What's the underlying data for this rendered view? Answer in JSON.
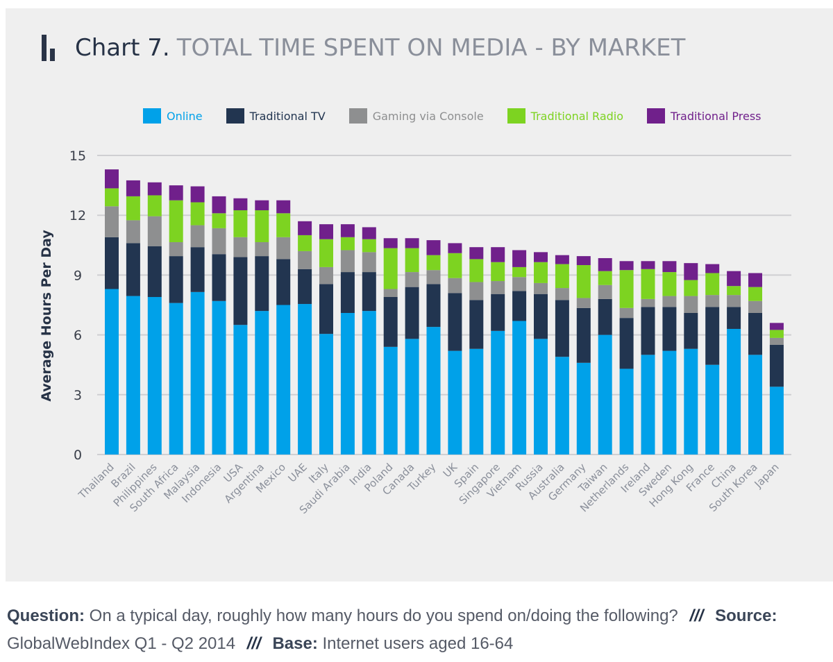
{
  "header": {
    "title_prefix": "Chart 7.",
    "title": "TOTAL TIME SPENT ON MEDIA - BY MARKET"
  },
  "colors": {
    "online": "#00a1e9",
    "tv": "#223550",
    "console": "#8e8f90",
    "radio": "#7dd321",
    "press": "#70208b"
  },
  "chart_data": {
    "type": "bar",
    "stacked": true,
    "title": "TOTAL TIME SPENT ON MEDIA - BY MARKET",
    "xlabel": "",
    "ylabel": "Average Hours Per Day",
    "ylim": [
      0,
      15
    ],
    "yticks": [
      0,
      3,
      6,
      9,
      12,
      15
    ],
    "grid": true,
    "legend_position": "top",
    "categories": [
      "Thailand",
      "Brazil",
      "Philippines",
      "South Africa",
      "Malaysia",
      "Indonesia",
      "USA",
      "Argentina",
      "Mexico",
      "UAE",
      "Italy",
      "Saudi Arabia",
      "India",
      "Poland",
      "Canada",
      "Turkey",
      "UK",
      "Spain",
      "Singapore",
      "Vietnam",
      "Russia",
      "Australia",
      "Germany",
      "Taiwan",
      "Netherlands",
      "Ireland",
      "Sweden",
      "Hong Kong",
      "France",
      "China",
      "South Korea",
      "Japan"
    ],
    "series": [
      {
        "name": "Online",
        "color": "#00a1e9",
        "values": [
          8.3,
          7.95,
          7.9,
          7.6,
          8.15,
          7.7,
          6.5,
          7.2,
          7.5,
          7.55,
          6.05,
          7.1,
          7.2,
          5.4,
          5.8,
          6.4,
          5.2,
          5.3,
          6.2,
          6.7,
          5.8,
          4.9,
          4.6,
          6.0,
          4.3,
          5.0,
          5.2,
          5.3,
          4.5,
          6.3,
          5.0,
          3.4
        ]
      },
      {
        "name": "Traditional TV",
        "color": "#223550",
        "values": [
          2.6,
          2.65,
          2.55,
          2.35,
          2.25,
          2.35,
          3.4,
          2.75,
          2.3,
          1.75,
          2.5,
          2.05,
          1.95,
          2.5,
          2.6,
          2.15,
          2.9,
          2.45,
          1.85,
          1.5,
          2.25,
          2.85,
          2.75,
          1.8,
          2.55,
          2.4,
          2.2,
          1.8,
          2.9,
          1.1,
          2.1,
          2.1
        ]
      },
      {
        "name": "Gaming via Console",
        "color": "#8e8f90",
        "values": [
          1.55,
          1.15,
          1.5,
          0.7,
          1.1,
          1.3,
          1.0,
          0.7,
          1.1,
          0.9,
          0.85,
          1.1,
          1.0,
          0.4,
          0.75,
          0.7,
          0.75,
          0.9,
          0.65,
          0.7,
          0.55,
          0.6,
          0.5,
          0.7,
          0.5,
          0.4,
          0.55,
          0.85,
          0.6,
          0.6,
          0.6,
          0.35
        ]
      },
      {
        "name": "Traditional Radio",
        "color": "#7dd321",
        "values": [
          0.9,
          1.2,
          1.05,
          2.1,
          1.15,
          0.75,
          1.35,
          1.6,
          1.2,
          0.8,
          1.4,
          0.65,
          0.65,
          2.05,
          1.2,
          0.75,
          1.25,
          1.15,
          0.95,
          0.5,
          1.05,
          1.2,
          1.65,
          0.7,
          1.9,
          1.5,
          1.2,
          0.8,
          1.1,
          0.45,
          0.7,
          0.4
        ]
      },
      {
        "name": "Traditional Press",
        "color": "#70208b",
        "values": [
          0.95,
          0.8,
          0.65,
          0.75,
          0.8,
          0.85,
          0.6,
          0.5,
          0.65,
          0.7,
          0.75,
          0.65,
          0.6,
          0.5,
          0.5,
          0.75,
          0.5,
          0.6,
          0.75,
          0.85,
          0.5,
          0.45,
          0.45,
          0.65,
          0.45,
          0.4,
          0.55,
          0.85,
          0.45,
          0.75,
          0.7,
          0.35
        ]
      }
    ]
  },
  "footer": {
    "question_label": "Question:",
    "question_text": "On a typical day, roughly how many hours do you spend on/doing the following?",
    "separator": "///",
    "source_label": "Source:",
    "source_text": "GlobalWebIndex Q1 - Q2 2014",
    "base_label": "Base:",
    "base_text": "Internet users aged 16-64"
  }
}
